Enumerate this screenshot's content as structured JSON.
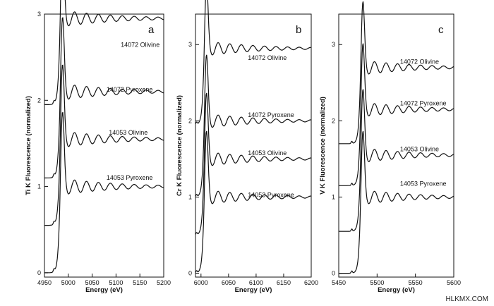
{
  "chart_data": [
    {
      "type": "line",
      "panel_label": "a",
      "xlabel": "Energy (eV)",
      "ylabel": "Ti K Fluorescence (normalized)",
      "xlim": [
        4950,
        5200
      ],
      "ylim": [
        -0.05,
        3.0
      ],
      "xticks": [
        4950,
        5000,
        5050,
        5100,
        5150,
        5200
      ],
      "yticks": [
        0,
        1,
        2,
        3
      ],
      "edge": 4982,
      "pre_peak": 4970,
      "series": [
        {
          "name": "14072 Olivine",
          "offset": 1.95,
          "label_x": 5110,
          "label_y": 2.62
        },
        {
          "name": "14072 Pyroxene",
          "offset": 1.1,
          "label_x": 5080,
          "label_y": 2.1
        },
        {
          "name": "14053 Olivine",
          "offset": 0.55,
          "label_x": 5085,
          "label_y": 1.6
        },
        {
          "name": "14053 Pyroxene",
          "offset": 0.0,
          "label_x": 5080,
          "label_y": 1.08
        }
      ]
    },
    {
      "type": "line",
      "panel_label": "b",
      "xlabel": "Energy (eV)",
      "ylabel": "Cr K Fluorescence (normalized)",
      "xlim": [
        5990,
        6200
      ],
      "ylim": [
        -0.05,
        3.4
      ],
      "xticks": [
        6000,
        6050,
        6100,
        6150,
        6200
      ],
      "yticks": [
        0,
        1,
        2,
        3
      ],
      "edge": 6005,
      "pre_peak": 5992,
      "series": [
        {
          "name": "14072 Olivine",
          "offset": 1.95,
          "label_x": 6085,
          "label_y": 2.8
        },
        {
          "name": "14072 Pyroxene",
          "offset": 1.0,
          "label_x": 6085,
          "label_y": 2.05
        },
        {
          "name": "14053 Olivine",
          "offset": 0.5,
          "label_x": 6085,
          "label_y": 1.55
        },
        {
          "name": "14053 Pyroxene",
          "offset": 0.0,
          "label_x": 6085,
          "label_y": 1.0
        }
      ]
    },
    {
      "type": "line",
      "panel_label": "c",
      "xlabel": "Energy (eV)",
      "ylabel": "V K Fluorescence (normalized)",
      "xlim": [
        5450,
        5600
      ],
      "ylim": [
        -0.05,
        3.4
      ],
      "xticks": [
        5450,
        5500,
        5550,
        5600
      ],
      "yticks": [
        0,
        1,
        2,
        3
      ],
      "edge": 5478,
      "pre_peak": 5467,
      "series": [
        {
          "name": "14072 Olivine",
          "offset": 1.7,
          "label_x": 5530,
          "label_y": 2.75
        },
        {
          "name": "14072 Pyroxene",
          "offset": 1.15,
          "label_x": 5530,
          "label_y": 2.2
        },
        {
          "name": "14053 Olivine",
          "offset": 0.55,
          "label_x": 5530,
          "label_y": 1.6
        },
        {
          "name": "14053 Pyroxene",
          "offset": 0.0,
          "label_x": 5530,
          "label_y": 1.15
        }
      ]
    }
  ],
  "watermark": "HLKMX.COM"
}
